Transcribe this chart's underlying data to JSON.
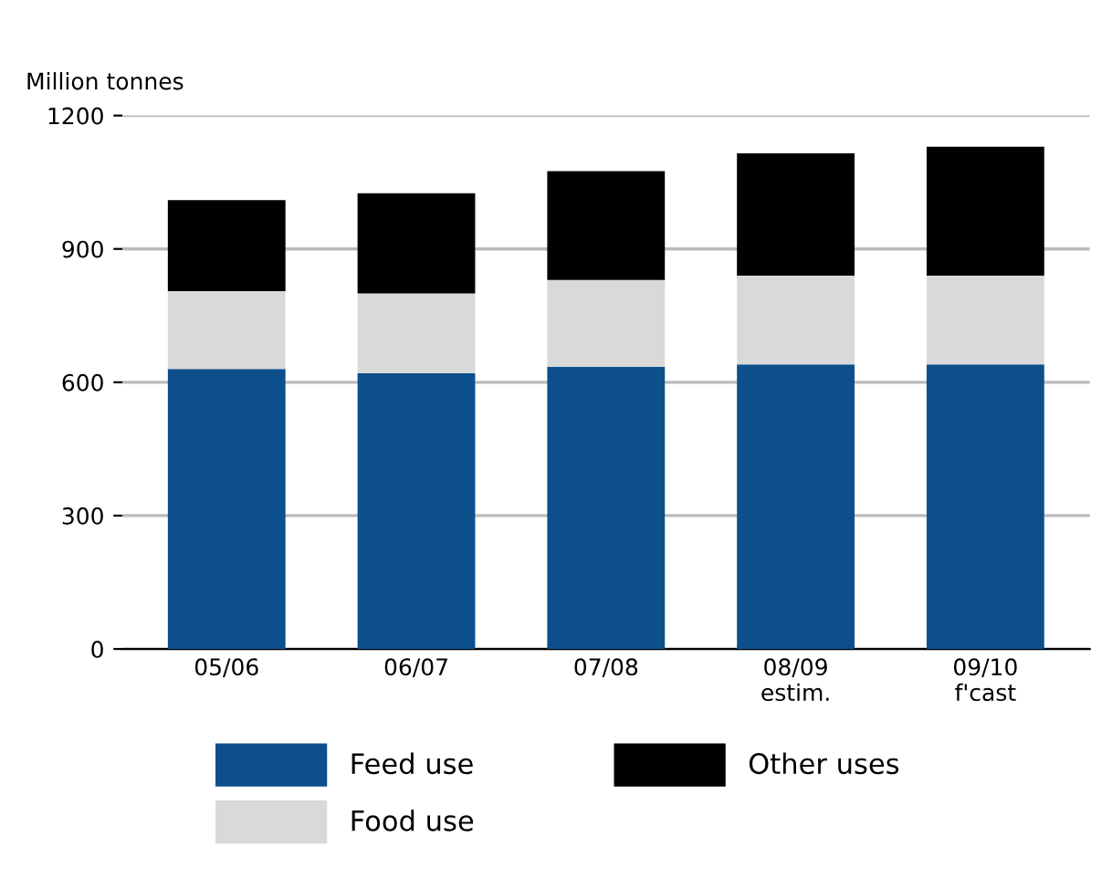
{
  "chart_data": {
    "type": "bar",
    "ylabel": "Million tonnes",
    "stacked": true,
    "categories": [
      "05/06",
      "06/07",
      "07/08",
      "08/09\nestim.",
      "09/10\nf'cast"
    ],
    "series": [
      {
        "name": "Feed use",
        "color": "#0d4f8b",
        "values": [
          630,
          620,
          635,
          640,
          640
        ]
      },
      {
        "name": "Food use",
        "color": "#d9d9d9",
        "values": [
          175,
          180,
          195,
          200,
          200
        ]
      },
      {
        "name": "Other uses",
        "color": "#000000",
        "values": [
          205,
          225,
          245,
          275,
          290
        ]
      }
    ],
    "ylim": [
      0,
      1200
    ],
    "yticks": [
      0,
      300,
      600,
      900,
      1200
    ],
    "grid": "y",
    "legend": "bottom"
  }
}
